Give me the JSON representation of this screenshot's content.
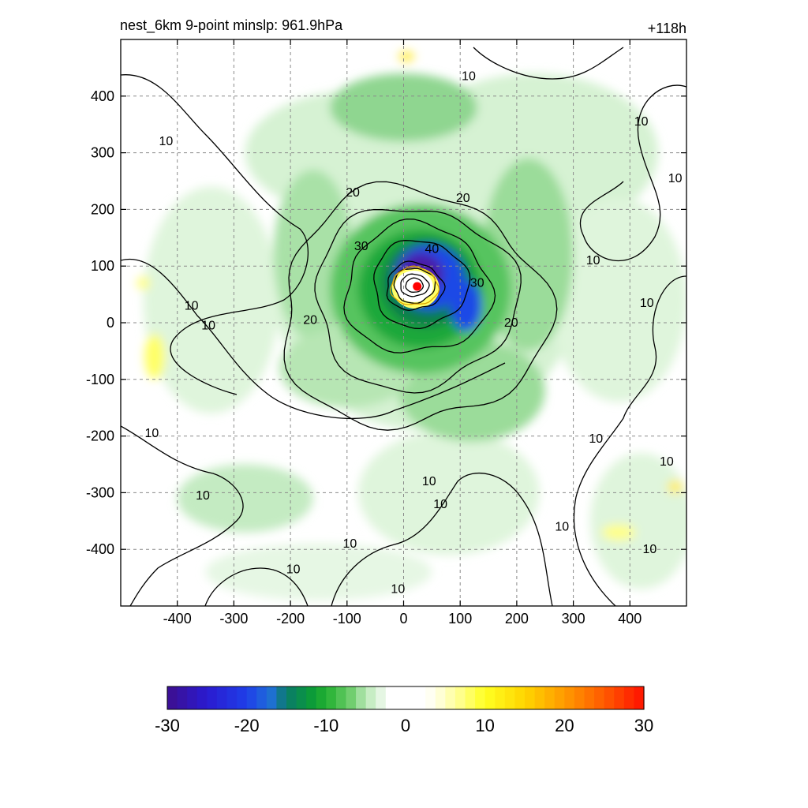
{
  "title": {
    "left": "nest_6km  9-point minslp: 961.9hPa",
    "right": "+118h"
  },
  "chart_data": {
    "type": "heatmap",
    "x_ticks": [
      -400,
      -300,
      -200,
      -100,
      0,
      100,
      200,
      300,
      400
    ],
    "y_ticks": [
      400,
      300,
      200,
      100,
      0,
      -100,
      -200,
      -300,
      -400
    ],
    "x_range": [
      -500,
      500
    ],
    "y_range": [
      -500,
      500
    ],
    "grid": true,
    "grid_style": "dashed",
    "colorbar": {
      "ticks": [
        -30,
        -20,
        -10,
        0,
        10,
        20,
        30
      ],
      "range": [
        -30,
        30
      ],
      "placement": "bottom"
    },
    "contour_labels": [
      {
        "text": "10",
        "x": 115,
        "y": 435
      },
      {
        "text": "10",
        "x": -420,
        "y": 320
      },
      {
        "text": "10",
        "x": 420,
        "y": 355
      },
      {
        "text": "10",
        "x": 480,
        "y": 255
      },
      {
        "text": "10",
        "x": 335,
        "y": 110
      },
      {
        "text": "10",
        "x": 430,
        "y": 35
      },
      {
        "text": "10",
        "x": -375,
        "y": 30
      },
      {
        "text": "10",
        "x": -345,
        "y": -5
      },
      {
        "text": "10",
        "x": -445,
        "y": -195
      },
      {
        "text": "10",
        "x": -355,
        "y": -305
      },
      {
        "text": "10",
        "x": 340,
        "y": -205
      },
      {
        "text": "10",
        "x": 465,
        "y": -245
      },
      {
        "text": "10",
        "x": 45,
        "y": -280
      },
      {
        "text": "10",
        "x": 65,
        "y": -320
      },
      {
        "text": "10",
        "x": -95,
        "y": -390
      },
      {
        "text": "10",
        "x": -195,
        "y": -435
      },
      {
        "text": "10",
        "x": -10,
        "y": -470
      },
      {
        "text": "10",
        "x": 280,
        "y": -360
      },
      {
        "text": "10",
        "x": 435,
        "y": -400
      },
      {
        "text": "20",
        "x": -90,
        "y": 230
      },
      {
        "text": "20",
        "x": 105,
        "y": 220
      },
      {
        "text": "20",
        "x": -165,
        "y": 5
      },
      {
        "text": "20",
        "x": 190,
        "y": 0
      },
      {
        "text": "30",
        "x": -75,
        "y": 135
      },
      {
        "text": "30",
        "x": 130,
        "y": 70
      },
      {
        "text": "40",
        "x": 50,
        "y": 130
      }
    ],
    "storm_center": {
      "x": 24,
      "y": 64
    }
  },
  "colors": {
    "center_marker": "#ff0000",
    "contour": "#000000",
    "colormap": [
      "#3d0f8f",
      "#1f3fe8",
      "#0a8a3a",
      "#9fe0a0",
      "#ffffff",
      "#ffff33",
      "#ff9900",
      "#ff1100"
    ]
  }
}
